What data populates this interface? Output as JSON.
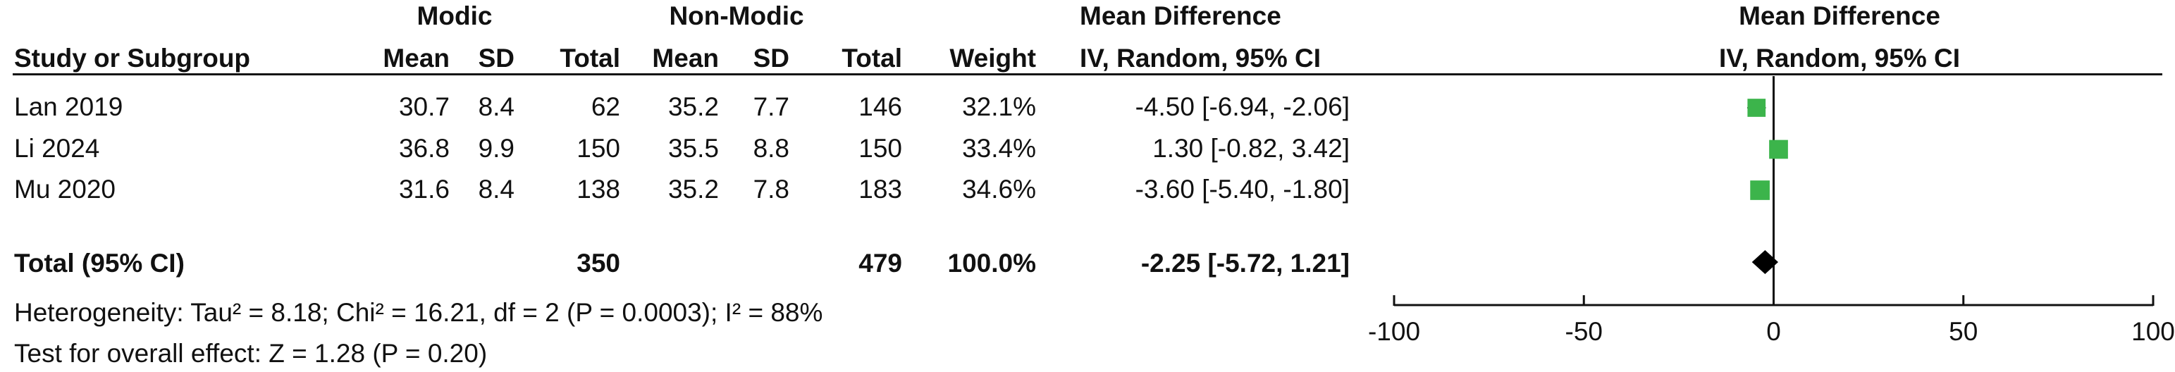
{
  "header": {
    "group1": "Modic",
    "group2": "Non-Modic",
    "table_effect_title": "Mean Difference",
    "plot_effect_title": "Mean Difference",
    "col_study": "Study or Subgroup",
    "col_mean1": "Mean",
    "col_sd1": "SD",
    "col_total1": "Total",
    "col_mean2": "Mean",
    "col_sd2": "SD",
    "col_total2": "Total",
    "col_weight": "Weight",
    "col_method": "IV, Random, 95% CI",
    "plot_method": "IV, Random, 95% CI"
  },
  "studies": [
    {
      "study": "Lan  2019",
      "mean1": "30.7",
      "sd1": "8.4",
      "total1": "62",
      "mean2": "35.2",
      "sd2": "7.7",
      "total2": "146",
      "weight": "32.1%",
      "ci": "-4.50 [-6.94, -2.06]"
    },
    {
      "study": "Li 2024",
      "mean1": "36.8",
      "sd1": "9.9",
      "total1": "150",
      "mean2": "35.5",
      "sd2": "8.8",
      "total2": "150",
      "weight": "33.4%",
      "ci": "1.30 [-0.82, 3.42]"
    },
    {
      "study": "Mu  2020",
      "mean1": "31.6",
      "sd1": "8.4",
      "total1": "138",
      "mean2": "35.2",
      "sd2": "7.8",
      "total2": "183",
      "weight": "34.6%",
      "ci": "-3.60 [-5.40, -1.80]"
    }
  ],
  "total": {
    "label": "Total (95% CI)",
    "total1": "350",
    "total2": "479",
    "weight": "100.0%",
    "ci": "-2.25 [-5.72, 1.21]"
  },
  "heterogeneity": "Heterogeneity: Tau² = 8.18; Chi² = 16.21, df = 2 (P = 0.0003); I² = 88%",
  "overall_effect": "Test for overall effect: Z = 1.28 (P = 0.20)",
  "colors": {
    "study_marker": "#3cb44b",
    "pooled_marker": "#000000",
    "text": "#111111"
  },
  "chart_data": {
    "type": "forest",
    "xlim": [
      -100,
      100
    ],
    "ticks": [
      -100,
      -50,
      0,
      50,
      100
    ],
    "tick_labels": [
      "-100",
      "-50",
      "0",
      "50",
      "100"
    ],
    "null_line": 0,
    "studies": [
      {
        "name": "Lan  2019",
        "md": -4.5,
        "lower": -6.94,
        "upper": -2.06,
        "weight": 32.1
      },
      {
        "name": "Li 2024",
        "md": 1.3,
        "lower": -0.82,
        "upper": 3.42,
        "weight": 33.4
      },
      {
        "name": "Mu  2020",
        "md": -3.6,
        "lower": -5.4,
        "upper": -1.8,
        "weight": 34.6
      }
    ],
    "pooled": {
      "md": -2.25,
      "lower": -5.72,
      "upper": 1.21
    }
  }
}
